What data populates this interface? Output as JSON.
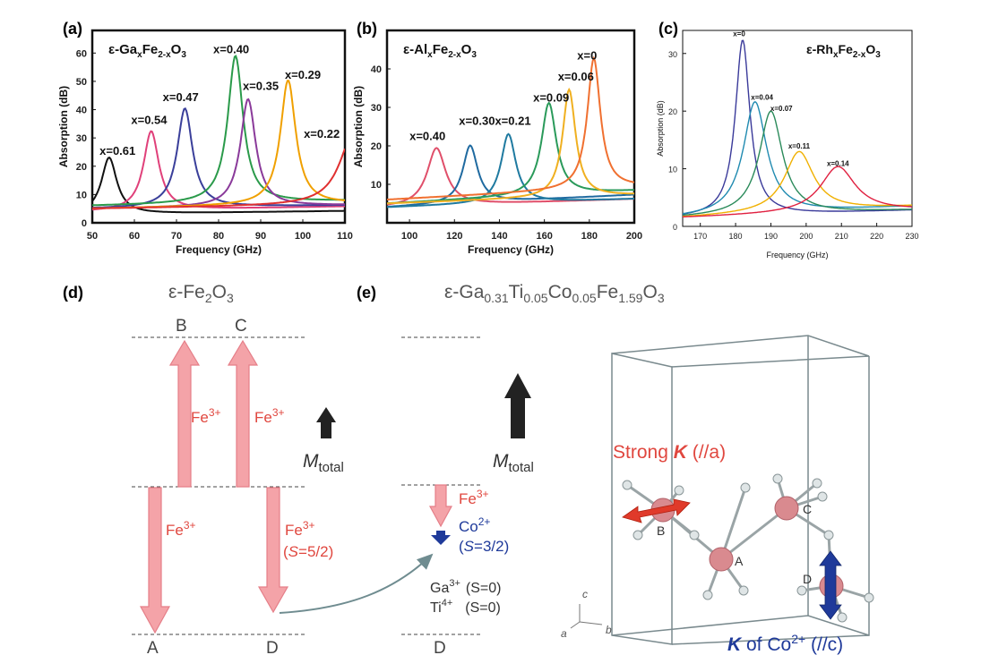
{
  "colors": {
    "fe_arrow": "#f4a3a8",
    "fe_stroke": "#e57e88",
    "fe_text": "#e0473f",
    "co_blue": "#1f3a9a",
    "m_total": "#222222",
    "curved_arrow": "#6f8c90",
    "crystal_atom": "#d98a8f"
  },
  "chart_data": [
    {
      "panel": "(a)",
      "type": "line",
      "title": "ε-GaxFe2-xO3",
      "title_parts": {
        "pre": "ε-Ga",
        "sub1": "x",
        "mid": "Fe",
        "sub2": "2-x",
        "mid2": "O",
        "sub3": "3"
      },
      "xlabel": "Frequency (GHz)",
      "ylabel": "Absorption (dB)",
      "xlim": [
        50,
        110
      ],
      "ylim": [
        0,
        68
      ],
      "xticks": [
        "50",
        "60",
        "70",
        "80",
        "90",
        "100",
        "110"
      ],
      "yticks": [
        "0",
        "10",
        "20",
        "30",
        "40",
        "50",
        "60"
      ],
      "series": [
        {
          "name": "x=0.61",
          "color": "#111111",
          "peak_x": 54,
          "peak_y": 23,
          "width": 2.2,
          "base": 3,
          "label_x": 56,
          "label_y": 24
        },
        {
          "name": "x=0.54",
          "color": "#e0407a",
          "peak_x": 64,
          "peak_y": 32,
          "width": 2.2,
          "base": 4,
          "label_x": 63.5,
          "label_y": 35
        },
        {
          "name": "x=0.47",
          "color": "#3a3f9a",
          "peak_x": 72,
          "peak_y": 40,
          "width": 2.2,
          "base": 5,
          "label_x": 71,
          "label_y": 43
        },
        {
          "name": "x=0.40",
          "color": "#2a9a4a",
          "peak_x": 84,
          "peak_y": 58,
          "width": 2.2,
          "base": 6,
          "label_x": 83,
          "label_y": 60
        },
        {
          "name": "x=0.35",
          "color": "#8a3a9a",
          "peak_x": 87,
          "peak_y": 43,
          "width": 2.2,
          "base": 5,
          "label_x": 90,
          "label_y": 47
        },
        {
          "name": "x=0.29",
          "color": "#f0a000",
          "peak_x": 96.5,
          "peak_y": 49,
          "width": 2.2,
          "base": 5,
          "label_x": 100,
          "label_y": 51
        },
        {
          "name": "x=0.22",
          "color": "#e03030",
          "peak_x": 112,
          "peak_y": 30,
          "width": 4,
          "base": 5,
          "label_x": 104.5,
          "label_y": 30
        }
      ]
    },
    {
      "panel": "(b)",
      "type": "line",
      "title": "ε-AlxFe2-xO3",
      "title_parts": {
        "pre": "ε-Al",
        "sub1": "x",
        "mid": "Fe",
        "sub2": "2-x",
        "mid2": "O",
        "sub3": "3"
      },
      "xlabel": "Frequency (GHz)",
      "ylabel": "Absorption (dB)",
      "xlim": [
        90,
        200
      ],
      "ylim": [
        0,
        50
      ],
      "xticks": [
        "100",
        "120",
        "140",
        "160",
        "180",
        "200"
      ],
      "yticks": [
        "10",
        "20",
        "30",
        "40"
      ],
      "series": [
        {
          "name": "x=0.40",
          "color": "#e04f6a",
          "peak_x": 112,
          "peak_y": 19,
          "width": 5,
          "base": 4,
          "label_x": 108,
          "label_y": 21.5
        },
        {
          "name": "x=0.30",
          "color": "#1f6aa0",
          "peak_x": 127,
          "peak_y": 19,
          "width": 4,
          "base": 4,
          "label_x": 130,
          "label_y": 25.5
        },
        {
          "name": "x=0.21",
          "color": "#1f7aa0",
          "peak_x": 144,
          "peak_y": 22,
          "width": 4,
          "base": 4,
          "label_x": 146,
          "label_y": 25.5
        },
        {
          "name": "x=0.09",
          "color": "#2a9a5a",
          "peak_x": 162,
          "peak_y": 29,
          "width": 4,
          "base": 5,
          "label_x": 163,
          "label_y": 31.5
        },
        {
          "name": "x=0.06",
          "color": "#f0b020",
          "peak_x": 171,
          "peak_y": 33,
          "width": 3.5,
          "base": 5,
          "label_x": 174,
          "label_y": 37
        },
        {
          "name": "x=0",
          "color": "#f07030",
          "peak_x": 182,
          "peak_y": 40,
          "width": 3.5,
          "base": 6,
          "label_x": 179,
          "label_y": 42.5
        }
      ]
    },
    {
      "panel": "(c)",
      "type": "line",
      "title": "ε-RhxFe2-xO3",
      "title_parts": {
        "pre": "ε-Rh",
        "sub1": "x",
        "mid": "Fe",
        "sub2": "2-x",
        "mid2": "O",
        "sub3": "3"
      },
      "xlabel": "Frequency (GHz)",
      "ylabel": "Absorption (dB)",
      "xlim": [
        165,
        230
      ],
      "ylim": [
        0,
        34
      ],
      "xticks": [
        "170",
        "180",
        "190",
        "200",
        "210",
        "220",
        "230"
      ],
      "yticks": [
        "0",
        "10",
        "20",
        "30"
      ],
      "series": [
        {
          "name": "x=0",
          "color": "#3a3a9a",
          "peak_x": 182,
          "peak_y": 32,
          "width": 2.5,
          "base": 1.5,
          "label_x": 181,
          "label_y": 33
        },
        {
          "name": "x=0.04",
          "color": "#1f8ab0",
          "peak_x": 185.5,
          "peak_y": 21,
          "width": 4,
          "base": 1.5,
          "label_x": 187.5,
          "label_y": 22
        },
        {
          "name": "x=0.07",
          "color": "#2a8a5a",
          "peak_x": 190,
          "peak_y": 19.5,
          "width": 4,
          "base": 1.5,
          "label_x": 193,
          "label_y": 20
        },
        {
          "name": "x=0.11",
          "color": "#f0b000",
          "peak_x": 198,
          "peak_y": 12,
          "width": 5,
          "base": 1.5,
          "label_x": 198,
          "label_y": 13.5
        },
        {
          "name": "x=0.14",
          "color": "#e02040",
          "peak_x": 209,
          "peak_y": 9.5,
          "width": 6,
          "base": 1.5,
          "label_x": 209,
          "label_y": 10.5
        }
      ]
    }
  ],
  "panels": {
    "a_label": "(a)",
    "b_label": "(b)",
    "c_label": "(c)",
    "d_label": "(d)",
    "e_label": "(e)"
  },
  "diagram_d": {
    "title_pre": "ε-Fe",
    "title_sub1": "2",
    "title_mid": "O",
    "title_sub2": "3",
    "site_B": "B",
    "site_C": "C",
    "site_A": "A",
    "site_D": "D",
    "fe_up_label": "Fe",
    "fe_up_sup": "3+",
    "fe_up2_label": "Fe",
    "fe_up2_sup": "3+",
    "fe_down_label": "Fe",
    "fe_down_sup": "3+",
    "fe_down2_label": "Fe",
    "fe_down2_sup": "3+",
    "spin_pre": "(",
    "spin_S": "S",
    "spin_value": "=5/2)",
    "m_label": "M",
    "m_sub": "total"
  },
  "diagram_e": {
    "title_pre": "ε-Ga",
    "sub_ga": "0.31",
    "ti": "Ti",
    "sub_ti": "0.05",
    "co": "Co",
    "sub_co": "0.05",
    "fe": "Fe",
    "sub_fe": "1.59",
    "o": "O",
    "sub_o": "3",
    "m_label": "M",
    "m_sub": "total",
    "fe_label": "Fe",
    "fe_sup": "3+",
    "co_label": "Co",
    "co_sup": "2+",
    "co_spin_pre": "(",
    "co_spin_S": "S",
    "co_spin_value": "=3/2)",
    "ga_label": "Ga",
    "ga_sup": "3+",
    "ga_spin": "(S=0)",
    "ti_label": "Ti",
    "ti_sup": "4+",
    "ti_spin": "(S=0)",
    "site_D": "D"
  },
  "crystal": {
    "strong_pre": "Strong ",
    "strong_K": "K",
    "strong_post": " (//a)",
    "k_co_K": "K",
    "k_co_post": " of Co",
    "k_co_sup": "2+",
    "k_co_tail": " (//c)",
    "site_B": "B",
    "site_A": "A",
    "site_C": "C",
    "site_D": "D",
    "axis_c": "c",
    "axis_a": "a",
    "axis_b": "b"
  }
}
